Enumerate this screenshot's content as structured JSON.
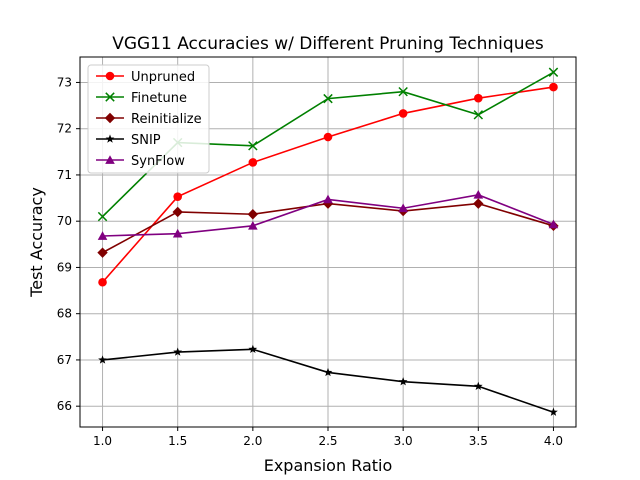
{
  "chart_data": {
    "type": "line",
    "title": "VGG11 Accuracies w/ Different Pruning Techniques",
    "xlabel": "Expansion Ratio",
    "ylabel": "Test Accuracy",
    "x": [
      1.0,
      1.5,
      2.0,
      2.5,
      3.0,
      3.5,
      4.0
    ],
    "xticks": [
      "1.0",
      "1.5",
      "2.0",
      "2.5",
      "3.0",
      "3.5",
      "4.0"
    ],
    "yticks": [
      "66",
      "67",
      "68",
      "69",
      "70",
      "71",
      "72",
      "73"
    ],
    "xlim": [
      0.85,
      4.15
    ],
    "ylim": [
      65.55,
      73.55
    ],
    "grid": true,
    "legend_position": "top-left",
    "series": [
      {
        "name": "Unpruned",
        "color": "#ff0000",
        "marker": "circle",
        "values": [
          68.68,
          70.53,
          71.27,
          71.82,
          72.33,
          72.66,
          72.9
        ]
      },
      {
        "name": "Finetune",
        "color": "#008000",
        "marker": "x",
        "values": [
          70.1,
          71.7,
          71.63,
          72.65,
          72.8,
          72.3,
          73.22
        ]
      },
      {
        "name": "Reinitialize",
        "color": "#800000",
        "marker": "diamond",
        "values": [
          69.32,
          70.2,
          70.15,
          70.38,
          70.22,
          70.38,
          69.9
        ]
      },
      {
        "name": "SNIP",
        "color": "#000000",
        "marker": "star",
        "values": [
          67.0,
          67.17,
          67.23,
          66.73,
          66.53,
          66.43,
          65.87
        ]
      },
      {
        "name": "SynFlow",
        "color": "#800080",
        "marker": "triangle",
        "values": [
          69.68,
          69.73,
          69.9,
          70.47,
          70.28,
          70.57,
          69.93
        ]
      }
    ]
  }
}
